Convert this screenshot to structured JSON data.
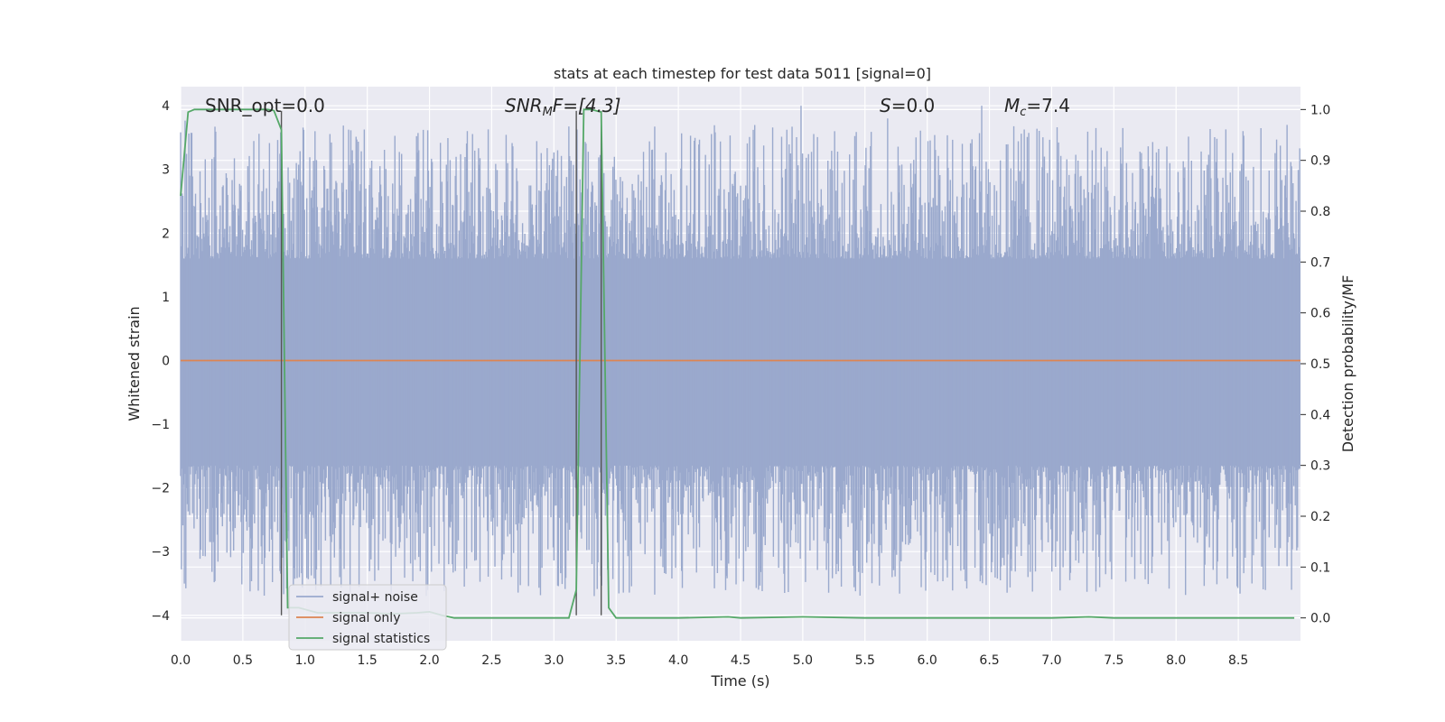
{
  "chart_data": {
    "type": "line",
    "title": "stats at each timestep for test data 5011 [signal=0]",
    "xlabel": "Time (s)",
    "ylabel": "Whitened strain",
    "y2label": "Detection probability/MF",
    "xlim": [
      0.0,
      9.0
    ],
    "ylim": [
      -4.4,
      4.3
    ],
    "y2lim": [
      -0.045,
      1.045
    ],
    "xticks": [
      "0.0",
      "0.5",
      "1.0",
      "1.5",
      "2.0",
      "2.5",
      "3.0",
      "3.5",
      "4.0",
      "4.5",
      "5.0",
      "5.5",
      "6.0",
      "6.5",
      "7.0",
      "7.5",
      "8.0",
      "8.5"
    ],
    "yticks": [
      "−4",
      "−3",
      "−2",
      "−1",
      "0",
      "1",
      "2",
      "3",
      "4"
    ],
    "y2ticks": [
      "0.0",
      "0.1",
      "0.2",
      "0.3",
      "0.4",
      "0.5",
      "0.6",
      "0.7",
      "0.8",
      "0.9",
      "1.0"
    ],
    "grid": true,
    "legend_position": "lower-left",
    "annotations": {
      "snr_opt": "SNR_opt=0.0",
      "snr_mf_main": "SNR",
      "snr_mf_sub": "M",
      "snr_mf_rest": "F=[4.3]",
      "s_italic": "S",
      "s_rest": "=0.0",
      "mc_main": "M",
      "mc_sub": "c",
      "mc_rest": "=7.4"
    },
    "vertical_lines_x": [
      0.81,
      3.18,
      3.38
    ],
    "series": [
      {
        "name": "signal+ noise",
        "color": "#9aa9cd",
        "description_envelope": {
          "dense_band": [
            -1.65,
            1.6
          ],
          "spike_max": 4.0,
          "spike_min": -4.0,
          "sample_step": 0.006
        }
      },
      {
        "name": "signal only",
        "color": "#dd8452",
        "values_constant": 0.0
      },
      {
        "name": "signal statistics",
        "color": "#55a868",
        "axis": "right",
        "x": [
          0.0,
          0.06,
          0.11,
          0.2,
          0.4,
          0.6,
          0.7,
          0.75,
          0.81,
          0.86,
          0.95,
          1.1,
          1.3,
          1.5,
          1.7,
          1.9,
          2.0,
          2.1,
          2.2,
          2.5,
          2.8,
          3.0,
          3.12,
          3.18,
          3.24,
          3.3,
          3.38,
          3.44,
          3.5,
          3.7,
          4.0,
          4.4,
          4.5,
          5.0,
          5.5,
          6.0,
          6.5,
          7.0,
          7.3,
          7.5,
          8.0,
          8.5,
          8.95
        ],
        "values": [
          0.83,
          0.995,
          1.0,
          1.0,
          1.0,
          1.0,
          1.0,
          0.998,
          0.96,
          0.02,
          0.02,
          0.01,
          0.01,
          0.01,
          0.008,
          0.01,
          0.012,
          0.005,
          0.0,
          0.0,
          0.0,
          0.0,
          0.0,
          0.055,
          1.0,
          1.0,
          0.995,
          0.02,
          0.0,
          0.0,
          0.0,
          0.002,
          0.0,
          0.002,
          0.0,
          0.0,
          0.0,
          0.0,
          0.002,
          0.0,
          0.0,
          0.0,
          0.0
        ]
      }
    ]
  }
}
